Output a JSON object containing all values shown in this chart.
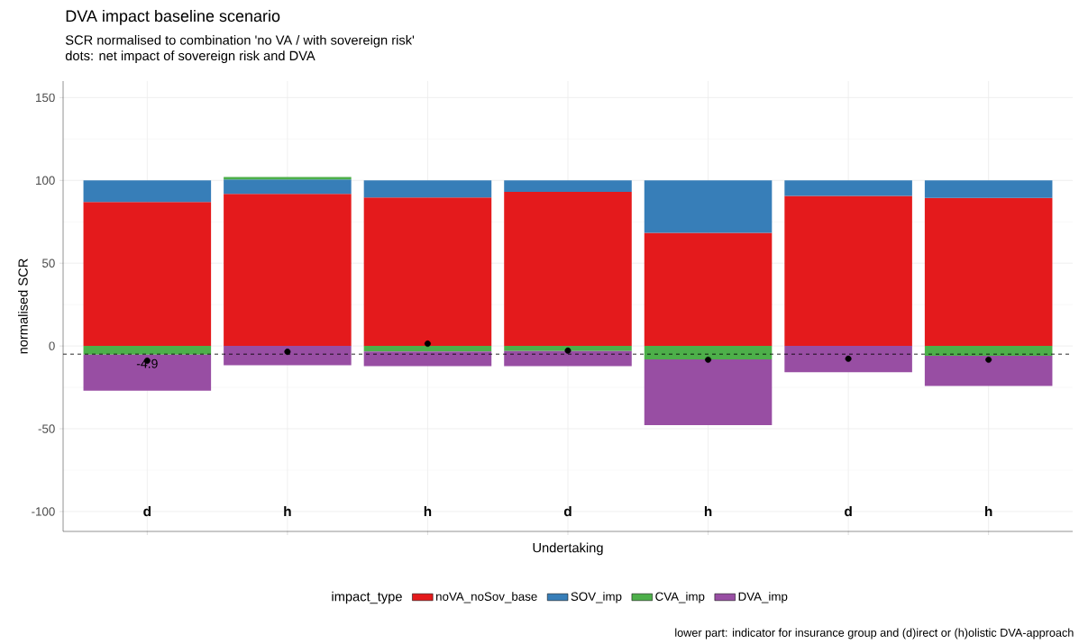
{
  "chart_data": {
    "type": "bar",
    "stacked": true,
    "title": "DVA impact baseline scenario",
    "subtitle": "SCR normalised to combination 'no VA / with sovereign risk'\ndots: net impact of sovereign risk and DVA",
    "xlabel": "Undertaking",
    "ylabel": "normalised SCR",
    "legend_title": "impact_type",
    "categories": [
      null,
      null,
      null,
      null,
      null,
      null,
      null
    ],
    "series": [
      {
        "name": "noVA_noSov_base",
        "color": "#e41a1c",
        "values": [
          87.0,
          91.8,
          89.7,
          93.1,
          68.3,
          90.6,
          89.4
        ]
      },
      {
        "name": "SOV_imp",
        "color": "#377eb8",
        "values": [
          13.0,
          8.8,
          10.3,
          6.9,
          31.7,
          9.4,
          10.6
        ]
      },
      {
        "name": "CVA_imp",
        "color": "#4daf4a",
        "values": [
          -5.2,
          1.5,
          -3.3,
          -3.1,
          -8.1,
          null,
          -5.9
        ]
      },
      {
        "name": "DVA_imp",
        "color": "#984ea3",
        "values": [
          -21.8,
          -11.7,
          -8.9,
          -9.1,
          -39.7,
          -15.9,
          -18.3
        ]
      },
      {
        "type": "scatter",
        "color": "#000000",
        "marker": "circle",
        "values": [
          -8.9,
          -3.5,
          1.4,
          -2.8,
          -8.3,
          -7.7,
          -8.3
        ]
      }
    ],
    "ylim": [
      -112,
      160
    ],
    "yticks": [
      -100,
      -50,
      0,
      50,
      100,
      150
    ],
    "ref_lines": [
      {
        "axis": "y",
        "value": -4.9,
        "label": "-4.9",
        "color": "#000000",
        "line_style": "dashed"
      }
    ],
    "annotations": [
      "d",
      "h",
      "h",
      "d",
      "h",
      "d",
      "h",
      "lower part: indicator for insurance group and (d)irect or (h)olistic DVA-approach"
    ],
    "grid": true,
    "legend": "bottom",
    "tick_labels": "y"
  }
}
